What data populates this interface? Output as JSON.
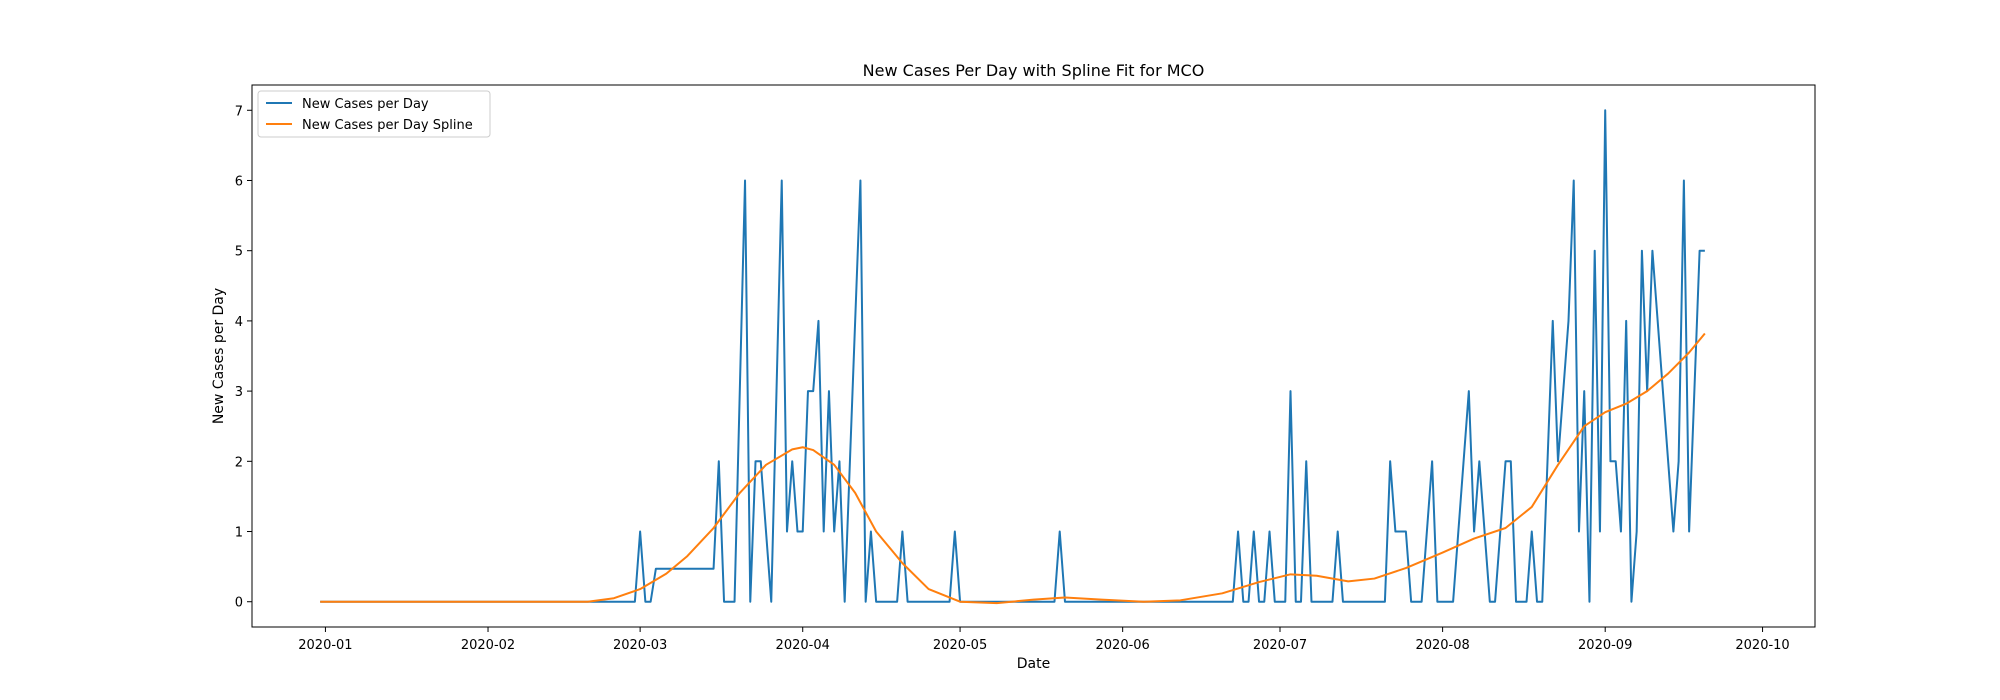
{
  "chart_data": {
    "type": "line",
    "title": "New Cases Per Day with Spline Fit for MCO",
    "xlabel": "Date",
    "ylabel": "New Cases per Day",
    "xlim": [
      "2019-12-18",
      "2020-10-11"
    ],
    "ylim": [
      -0.36,
      7.36
    ],
    "x_ticks": [
      "2020-01-01",
      "2020-02-01",
      "2020-03-01",
      "2020-04-01",
      "2020-05-01",
      "2020-06-01",
      "2020-07-01",
      "2020-08-01",
      "2020-09-01",
      "2020-10-01"
    ],
    "x_tick_labels": [
      "2020-01",
      "2020-02",
      "2020-03",
      "2020-04",
      "2020-05",
      "2020-06",
      "2020-07",
      "2020-08",
      "2020-09",
      "2020-10"
    ],
    "y_ticks": [
      0,
      1,
      2,
      3,
      4,
      5,
      6,
      7
    ],
    "y_tick_labels": [
      "0",
      "1",
      "2",
      "3",
      "4",
      "5",
      "6",
      "7"
    ],
    "grid": false,
    "legend_position": "top-left",
    "series": [
      {
        "name": "New Cases per Day",
        "color": "#1f77b4",
        "points": [
          [
            "2019-12-31",
            0
          ],
          [
            "2020-02-29",
            0
          ],
          [
            "2020-03-01",
            1
          ],
          [
            "2020-03-02",
            0
          ],
          [
            "2020-03-03",
            0
          ],
          [
            "2020-03-04",
            0.47
          ],
          [
            "2020-03-15",
            0.47
          ],
          [
            "2020-03-16",
            2
          ],
          [
            "2020-03-17",
            0
          ],
          [
            "2020-03-19",
            0
          ],
          [
            "2020-03-21",
            6
          ],
          [
            "2020-03-22",
            0
          ],
          [
            "2020-03-23",
            2
          ],
          [
            "2020-03-24",
            2
          ],
          [
            "2020-03-26",
            0
          ],
          [
            "2020-03-28",
            6
          ],
          [
            "2020-03-29",
            1
          ],
          [
            "2020-03-30",
            2
          ],
          [
            "2020-03-31",
            1
          ],
          [
            "2020-04-01",
            1
          ],
          [
            "2020-04-02",
            3
          ],
          [
            "2020-04-03",
            3
          ],
          [
            "2020-04-04",
            4
          ],
          [
            "2020-04-05",
            1
          ],
          [
            "2020-04-06",
            3
          ],
          [
            "2020-04-07",
            1
          ],
          [
            "2020-04-08",
            2
          ],
          [
            "2020-04-09",
            0
          ],
          [
            "2020-04-11",
            4
          ],
          [
            "2020-04-12",
            6
          ],
          [
            "2020-04-13",
            0
          ],
          [
            "2020-04-14",
            1
          ],
          [
            "2020-04-15",
            0
          ],
          [
            "2020-04-19",
            0
          ],
          [
            "2020-04-20",
            1
          ],
          [
            "2020-04-21",
            0
          ],
          [
            "2020-04-29",
            0
          ],
          [
            "2020-04-30",
            1
          ],
          [
            "2020-05-01",
            0
          ],
          [
            "2020-05-19",
            0
          ],
          [
            "2020-05-20",
            1
          ],
          [
            "2020-05-21",
            0
          ],
          [
            "2020-06-22",
            0
          ],
          [
            "2020-06-23",
            1
          ],
          [
            "2020-06-24",
            0
          ],
          [
            "2020-06-25",
            0
          ],
          [
            "2020-06-26",
            1
          ],
          [
            "2020-06-27",
            0
          ],
          [
            "2020-06-28",
            0
          ],
          [
            "2020-06-29",
            1
          ],
          [
            "2020-06-30",
            0
          ],
          [
            "2020-07-02",
            0
          ],
          [
            "2020-07-03",
            3
          ],
          [
            "2020-07-04",
            0
          ],
          [
            "2020-07-05",
            0
          ],
          [
            "2020-07-06",
            2
          ],
          [
            "2020-07-07",
            0
          ],
          [
            "2020-07-11",
            0
          ],
          [
            "2020-07-12",
            1
          ],
          [
            "2020-07-13",
            0
          ],
          [
            "2020-07-21",
            0
          ],
          [
            "2020-07-22",
            2
          ],
          [
            "2020-07-23",
            1
          ],
          [
            "2020-07-25",
            1
          ],
          [
            "2020-07-26",
            0
          ],
          [
            "2020-07-28",
            0
          ],
          [
            "2020-07-30",
            2
          ],
          [
            "2020-07-31",
            0
          ],
          [
            "2020-08-03",
            0
          ],
          [
            "2020-08-06",
            3
          ],
          [
            "2020-08-07",
            1
          ],
          [
            "2020-08-08",
            2
          ],
          [
            "2020-08-10",
            0
          ],
          [
            "2020-08-11",
            0
          ],
          [
            "2020-08-13",
            2
          ],
          [
            "2020-08-14",
            2
          ],
          [
            "2020-08-15",
            0
          ],
          [
            "2020-08-17",
            0
          ],
          [
            "2020-08-18",
            1
          ],
          [
            "2020-08-19",
            0
          ],
          [
            "2020-08-20",
            0
          ],
          [
            "2020-08-22",
            4
          ],
          [
            "2020-08-23",
            2
          ],
          [
            "2020-08-25",
            4
          ],
          [
            "2020-08-26",
            6
          ],
          [
            "2020-08-27",
            1
          ],
          [
            "2020-08-28",
            3
          ],
          [
            "2020-08-29",
            0
          ],
          [
            "2020-08-30",
            5
          ],
          [
            "2020-08-31",
            1
          ],
          [
            "2020-09-01",
            7
          ],
          [
            "2020-09-02",
            2
          ],
          [
            "2020-09-03",
            2
          ],
          [
            "2020-09-04",
            1
          ],
          [
            "2020-09-05",
            4
          ],
          [
            "2020-09-06",
            0
          ],
          [
            "2020-09-07",
            1
          ],
          [
            "2020-09-08",
            5
          ],
          [
            "2020-09-09",
            3
          ],
          [
            "2020-09-10",
            5
          ],
          [
            "2020-09-14",
            1
          ],
          [
            "2020-09-15",
            2
          ],
          [
            "2020-09-16",
            6
          ],
          [
            "2020-09-17",
            1
          ],
          [
            "2020-09-19",
            5
          ],
          [
            "2020-09-20",
            5
          ]
        ]
      },
      {
        "name": "New Cases per Day Spline",
        "color": "#ff7f0e",
        "points": [
          [
            "2019-12-31",
            0
          ],
          [
            "2020-01-15",
            0
          ],
          [
            "2020-02-01",
            0
          ],
          [
            "2020-02-15",
            0
          ],
          [
            "2020-02-20",
            0
          ],
          [
            "2020-02-25",
            0.05
          ],
          [
            "2020-03-01",
            0.18
          ],
          [
            "2020-03-06",
            0.4
          ],
          [
            "2020-03-10",
            0.65
          ],
          [
            "2020-03-15",
            1.05
          ],
          [
            "2020-03-20",
            1.55
          ],
          [
            "2020-03-25",
            1.95
          ],
          [
            "2020-03-30",
            2.17
          ],
          [
            "2020-04-01",
            2.2
          ],
          [
            "2020-04-03",
            2.16
          ],
          [
            "2020-04-07",
            1.95
          ],
          [
            "2020-04-11",
            1.55
          ],
          [
            "2020-04-15",
            1.0
          ],
          [
            "2020-04-20",
            0.55
          ],
          [
            "2020-04-25",
            0.18
          ],
          [
            "2020-05-01",
            0.0
          ],
          [
            "2020-05-08",
            -0.02
          ],
          [
            "2020-05-15",
            0.03
          ],
          [
            "2020-05-21",
            0.06
          ],
          [
            "2020-05-28",
            0.03
          ],
          [
            "2020-06-05",
            0.0
          ],
          [
            "2020-06-12",
            0.02
          ],
          [
            "2020-06-20",
            0.12
          ],
          [
            "2020-06-27",
            0.28
          ],
          [
            "2020-07-03",
            0.39
          ],
          [
            "2020-07-08",
            0.37
          ],
          [
            "2020-07-14",
            0.29
          ],
          [
            "2020-07-19",
            0.33
          ],
          [
            "2020-07-25",
            0.48
          ],
          [
            "2020-08-01",
            0.7
          ],
          [
            "2020-08-07",
            0.9
          ],
          [
            "2020-08-13",
            1.05
          ],
          [
            "2020-08-18",
            1.35
          ],
          [
            "2020-08-23",
            1.95
          ],
          [
            "2020-08-28",
            2.5
          ],
          [
            "2020-09-01",
            2.7
          ],
          [
            "2020-09-05",
            2.82
          ],
          [
            "2020-09-09",
            3.0
          ],
          [
            "2020-09-13",
            3.25
          ],
          [
            "2020-09-17",
            3.55
          ],
          [
            "2020-09-20",
            3.82
          ]
        ]
      }
    ]
  }
}
